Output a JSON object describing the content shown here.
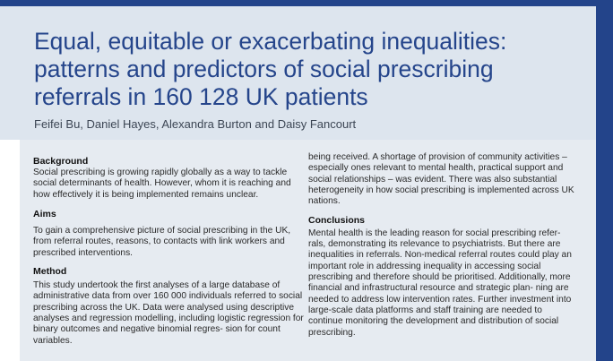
{
  "article": {
    "title": "Equal, equitable or exacerbating inequalities: patterns and predictors of social prescribing referrals in 160 128 UK patients",
    "authors": "Feifei Bu, Daniel Hayes, Alexandra Burton and Daisy Fancourt"
  },
  "abstract": {
    "background_heading": "Background",
    "background_text": "Social prescribing is growing rapidly globally as a way to tackle social determinants of health. However, whom it is reaching and how effectively it is being implemented remains unclear.",
    "aims_heading": "Aims",
    "aims_text": "To gain a comprehensive picture of social prescribing in the UK, from referral routes, reasons, to contacts with link workers and prescribed interventions.",
    "method_heading": "Method",
    "method_text": "This study undertook the first analyses of a large database of administrative data from over 160 000 individuals referred to social prescribing across the UK. Data were analysed using descriptive analyses and regression modelling, including logistic regression for binary outcomes and negative binomial regres- sion for count variables.",
    "results_continued_text": "being received. A shortage of provision of community activities – especially ones relevant to mental health, practical support and social relationships – was evident. There was also substantial heterogeneity in how social prescribing is implemented across UK nations.",
    "conclusions_heading": "Conclusions",
    "conclusions_text": "Mental health is the leading reason for social prescribing refer- rals, demonstrating its relevance to psychiatrists. But there are inequalities in referrals. Non-medical referral routes could play an important role in addressing inequality in accessing social prescribing and therefore should be prioritised. Additionally, more financial and infrastructural resource and strategic plan- ning are needed to address low intervention rates. Further investment into large-scale data platforms and staff training are needed to continue monitoring the development and distribution of social prescribing."
  },
  "colors": {
    "brand_blue": "#23448a",
    "title_blue": "#25458b",
    "header_band": "#dde5ee",
    "abstract_panel": "#e6ebf1"
  }
}
